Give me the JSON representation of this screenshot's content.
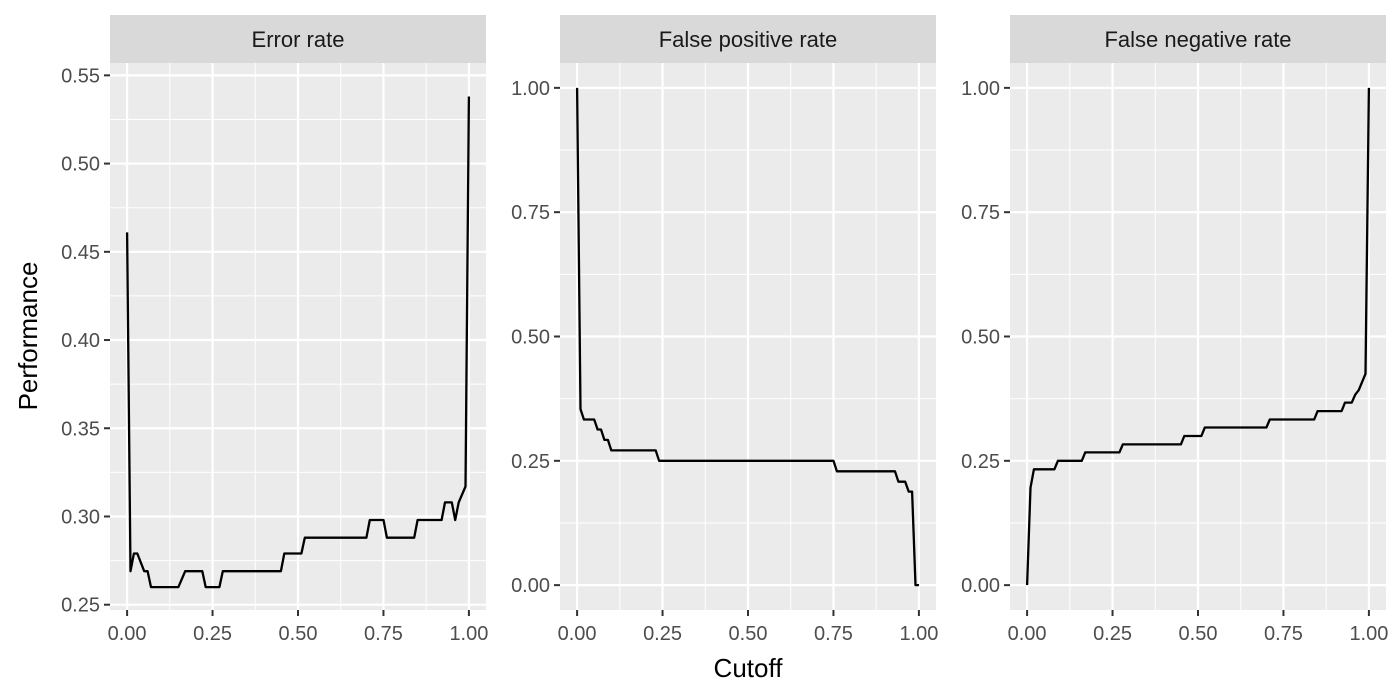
{
  "x_axis_title": "Cutoff",
  "y_axis_title": "Performance",
  "chart_data": [
    {
      "type": "line",
      "title": "Error rate",
      "xlabel": "Cutoff",
      "ylabel": "Performance",
      "xlim": [
        -0.05,
        1.05
      ],
      "ylim": [
        0.247,
        0.557
      ],
      "xticks": [
        0,
        0.25,
        0.5,
        0.75,
        1
      ],
      "xtick_labels": [
        "0.00",
        "0.25",
        "0.50",
        "0.75",
        "1.00"
      ],
      "yticks": [
        0.25,
        0.3,
        0.35,
        0.4,
        0.45,
        0.5,
        0.55
      ],
      "ytick_labels": [
        "0.25",
        "0.30",
        "0.35",
        "0.40",
        "0.45",
        "0.50",
        "0.55"
      ],
      "grid": true,
      "x": [
        0.0,
        0.01,
        0.02,
        0.03,
        0.05,
        0.06,
        0.07,
        0.1,
        0.12,
        0.15,
        0.17,
        0.18,
        0.22,
        0.23,
        0.27,
        0.28,
        0.45,
        0.46,
        0.51,
        0.52,
        0.7,
        0.71,
        0.75,
        0.76,
        0.84,
        0.85,
        0.92,
        0.93,
        0.95,
        0.96,
        0.97,
        0.99,
        1.0
      ],
      "y": [
        0.461,
        0.269,
        0.279,
        0.279,
        0.269,
        0.269,
        0.26,
        0.26,
        0.26,
        0.26,
        0.269,
        0.269,
        0.269,
        0.26,
        0.26,
        0.269,
        0.269,
        0.279,
        0.279,
        0.288,
        0.288,
        0.298,
        0.298,
        0.288,
        0.288,
        0.298,
        0.298,
        0.308,
        0.308,
        0.298,
        0.308,
        0.317,
        0.538
      ]
    },
    {
      "type": "line",
      "title": "False positive rate",
      "xlabel": "Cutoff",
      "ylabel": "Performance",
      "xlim": [
        -0.05,
        1.05
      ],
      "ylim": [
        -0.05,
        1.05
      ],
      "xticks": [
        0,
        0.25,
        0.5,
        0.75,
        1
      ],
      "xtick_labels": [
        "0.00",
        "0.25",
        "0.50",
        "0.75",
        "1.00"
      ],
      "yticks": [
        0,
        0.25,
        0.5,
        0.75,
        1
      ],
      "ytick_labels": [
        "0.00",
        "0.25",
        "0.50",
        "0.75",
        "1.00"
      ],
      "grid": true,
      "x": [
        0.0,
        0.01,
        0.02,
        0.04,
        0.05,
        0.06,
        0.07,
        0.08,
        0.09,
        0.1,
        0.12,
        0.15,
        0.2,
        0.23,
        0.24,
        0.3,
        0.5,
        0.7,
        0.75,
        0.76,
        0.8,
        0.85,
        0.9,
        0.93,
        0.94,
        0.96,
        0.97,
        0.98,
        0.99,
        1.0
      ],
      "y": [
        1.0,
        0.354,
        0.333,
        0.333,
        0.333,
        0.313,
        0.313,
        0.292,
        0.292,
        0.271,
        0.271,
        0.271,
        0.271,
        0.271,
        0.25,
        0.25,
        0.25,
        0.25,
        0.25,
        0.229,
        0.229,
        0.229,
        0.229,
        0.229,
        0.208,
        0.208,
        0.188,
        0.188,
        0.0,
        0.0
      ]
    },
    {
      "type": "line",
      "title": "False negative rate",
      "xlabel": "Cutoff",
      "ylabel": "Performance",
      "xlim": [
        -0.05,
        1.05
      ],
      "ylim": [
        -0.05,
        1.05
      ],
      "xticks": [
        0,
        0.25,
        0.5,
        0.75,
        1
      ],
      "xtick_labels": [
        "0.00",
        "0.25",
        "0.50",
        "0.75",
        "1.00"
      ],
      "yticks": [
        0,
        0.25,
        0.5,
        0.75,
        1
      ],
      "ytick_labels": [
        "0.00",
        "0.25",
        "0.50",
        "0.75",
        "1.00"
      ],
      "grid": true,
      "x": [
        0.0,
        0.01,
        0.02,
        0.08,
        0.09,
        0.16,
        0.17,
        0.27,
        0.28,
        0.45,
        0.46,
        0.51,
        0.52,
        0.7,
        0.71,
        0.84,
        0.85,
        0.92,
        0.93,
        0.95,
        0.96,
        0.97,
        0.99,
        1.0
      ],
      "y": [
        0.0,
        0.196,
        0.233,
        0.233,
        0.25,
        0.25,
        0.267,
        0.267,
        0.283,
        0.283,
        0.3,
        0.3,
        0.317,
        0.317,
        0.333,
        0.333,
        0.35,
        0.35,
        0.367,
        0.367,
        0.383,
        0.392,
        0.425,
        1.0
      ]
    }
  ]
}
